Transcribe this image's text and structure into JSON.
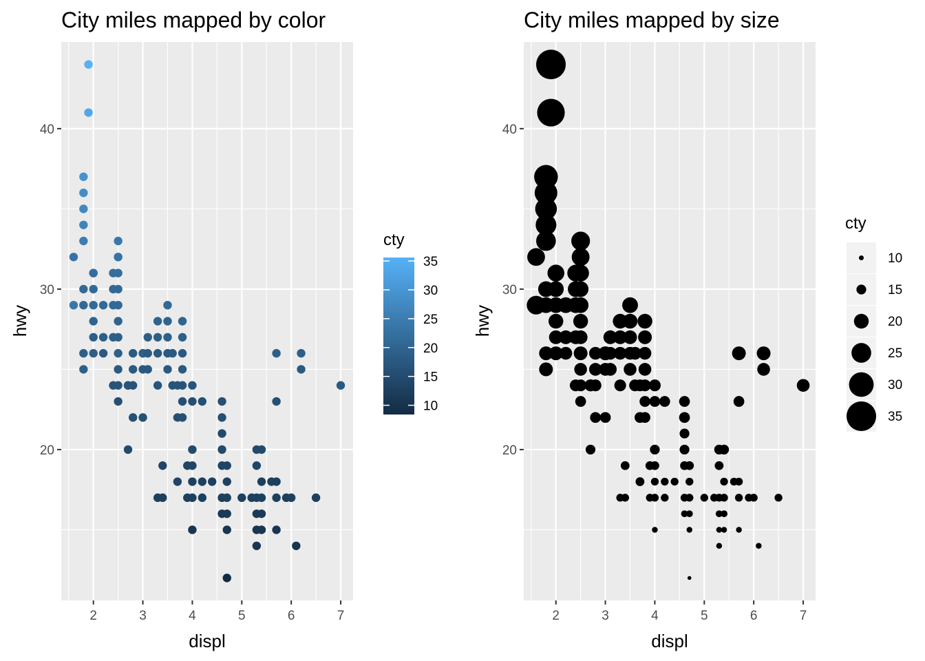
{
  "chart_data": [
    {
      "type": "scatter",
      "title": "City miles mapped by color",
      "xlabel": "displ",
      "ylabel": "hwy",
      "xlim": [
        1.35,
        7.25
      ],
      "ylim": [
        10.6,
        45.4
      ],
      "xticks": [
        2,
        3,
        4,
        5,
        6,
        7
      ],
      "yticks": [
        20,
        30,
        40
      ],
      "grid": true,
      "legend": {
        "title": "cty",
        "kind": "colorbar",
        "placement": "right",
        "range": [
          9,
          35
        ],
        "labels": [
          35,
          30,
          25,
          20,
          15,
          10
        ],
        "low_color": "#132B43",
        "high_color": "#56B1F7"
      },
      "x": [
        1.6,
        1.6,
        1.8,
        1.8,
        1.8,
        1.8,
        1.8,
        1.8,
        1.8,
        1.8,
        1.8,
        1.9,
        1.9,
        2.0,
        2.0,
        2.0,
        2.0,
        2.0,
        2.0,
        2.0,
        2.2,
        2.2,
        2.2,
        2.4,
        2.4,
        2.4,
        2.4,
        2.4,
        2.5,
        2.5,
        2.5,
        2.5,
        2.5,
        2.5,
        2.5,
        2.5,
        2.5,
        2.5,
        2.5,
        2.5,
        2.7,
        2.7,
        2.7,
        2.8,
        2.8,
        2.8,
        2.8,
        3.0,
        3.0,
        3.0,
        3.0,
        3.1,
        3.1,
        3.1,
        3.3,
        3.3,
        3.3,
        3.3,
        3.3,
        3.4,
        3.4,
        3.5,
        3.5,
        3.5,
        3.5,
        3.5,
        3.6,
        3.6,
        3.7,
        3.7,
        3.7,
        3.8,
        3.8,
        3.8,
        3.8,
        3.8,
        3.8,
        3.8,
        3.9,
        3.9,
        4.0,
        4.0,
        4.0,
        4.0,
        4.0,
        4.0,
        4.0,
        4.2,
        4.2,
        4.2,
        4.4,
        4.6,
        4.6,
        4.6,
        4.6,
        4.6,
        4.6,
        4.6,
        4.7,
        4.7,
        4.7,
        4.7,
        4.7,
        4.7,
        5.0,
        5.2,
        5.3,
        5.3,
        5.3,
        5.3,
        5.3,
        5.3,
        5.4,
        5.4,
        5.4,
        5.4,
        5.4,
        5.6,
        5.7,
        5.7,
        5.7,
        5.7,
        5.7,
        5.9,
        6.0,
        6.1,
        6.2,
        6.2,
        6.5,
        7.0
      ],
      "y": [
        29,
        32,
        25,
        26,
        29,
        30,
        33,
        34,
        35,
        36,
        37,
        41,
        44,
        26,
        27,
        28,
        29,
        30,
        31,
        31,
        26,
        27,
        29,
        24,
        27,
        31,
        29,
        30,
        23,
        24,
        25,
        26,
        27,
        28,
        29,
        30,
        31,
        32,
        32,
        33,
        20,
        24,
        24,
        24,
        25,
        26,
        22,
        22,
        25,
        26,
        26,
        25,
        26,
        27,
        17,
        24,
        26,
        27,
        28,
        17,
        19,
        25,
        26,
        27,
        29,
        28,
        26,
        24,
        18,
        22,
        24,
        25,
        23,
        26,
        27,
        28,
        22,
        24,
        19,
        17,
        15,
        17,
        18,
        19,
        20,
        23,
        24,
        17,
        18,
        23,
        18,
        16,
        17,
        19,
        20,
        21,
        22,
        23,
        12,
        15,
        16,
        17,
        18,
        19,
        17,
        17,
        14,
        15,
        16,
        17,
        19,
        20,
        15,
        16,
        17,
        18,
        20,
        18,
        15,
        17,
        18,
        23,
        26,
        17,
        17,
        14,
        25,
        26,
        17,
        24
      ],
      "cty": [
        24,
        23,
        19,
        19,
        21,
        21,
        25,
        26,
        27,
        28,
        29,
        33,
        35,
        19,
        19,
        20,
        21,
        21,
        22,
        22,
        18,
        19,
        21,
        17,
        19,
        22,
        21,
        21,
        16,
        17,
        18,
        19,
        19,
        20,
        21,
        21,
        22,
        23,
        23,
        24,
        15,
        17,
        17,
        17,
        18,
        18,
        16,
        16,
        18,
        19,
        19,
        18,
        18,
        19,
        13,
        17,
        18,
        19,
        20,
        13,
        14,
        18,
        18,
        19,
        21,
        20,
        18,
        17,
        14,
        16,
        17,
        18,
        16,
        18,
        19,
        20,
        16,
        17,
        14,
        13,
        11,
        13,
        13,
        14,
        15,
        16,
        17,
        13,
        13,
        16,
        13,
        12,
        13,
        14,
        15,
        15,
        16,
        16,
        9,
        11,
        12,
        13,
        13,
        14,
        13,
        13,
        11,
        11,
        12,
        13,
        14,
        15,
        11,
        12,
        13,
        13,
        15,
        13,
        11,
        13,
        13,
        16,
        19,
        13,
        13,
        11,
        18,
        19,
        13,
        18
      ]
    },
    {
      "type": "scatter",
      "title": "City miles mapped by size",
      "xlabel": "displ",
      "ylabel": "hwy",
      "xlim": [
        1.35,
        7.25
      ],
      "ylim": [
        10.6,
        45.4
      ],
      "xticks": [
        2,
        3,
        4,
        5,
        6,
        7
      ],
      "yticks": [
        20,
        30,
        40
      ],
      "grid": true,
      "legend": {
        "title": "cty",
        "kind": "size",
        "placement": "right",
        "labels": [
          10,
          15,
          20,
          25,
          30,
          35
        ],
        "point_color": "#000000"
      }
    }
  ]
}
